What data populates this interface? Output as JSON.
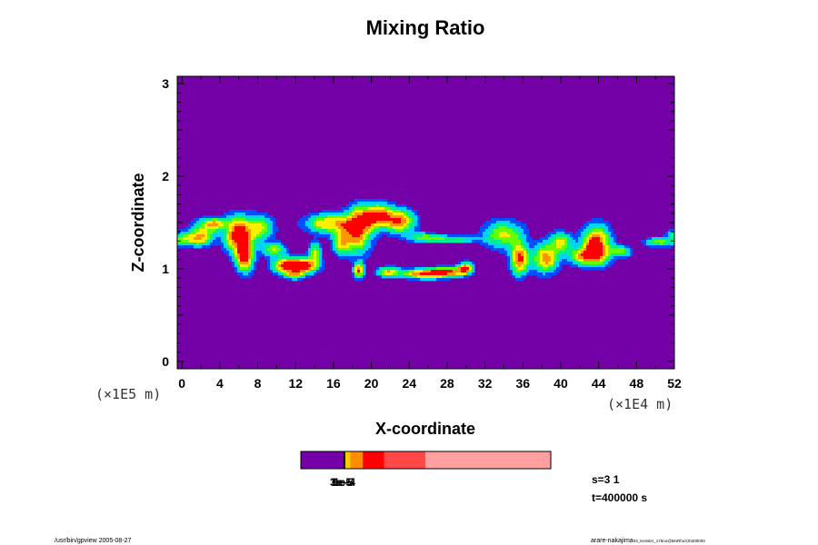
{
  "chart_data": {
    "type": "heatmap",
    "title": "Mixing Ratio",
    "xlabel": "X-coordinate",
    "ylabel": "Z-coordinate",
    "x_scale_label": "(×1E4 m)",
    "y_scale_label": "(×1E5 m)",
    "xlim": [
      -0.5,
      52
    ],
    "ylim": [
      -0.08,
      3.08
    ],
    "x_ticks": [
      0,
      4,
      8,
      12,
      16,
      20,
      24,
      28,
      32,
      36,
      40,
      44,
      48,
      52
    ],
    "y_ticks": [
      0,
      1,
      2,
      3
    ],
    "background_color": "#7400a8",
    "level_colors": [
      "#7400a8",
      "#0050ff",
      "#00d2ff",
      "#00f08c",
      "#64ff00",
      "#ffee00",
      "#ff9600",
      "#ff0000"
    ],
    "colorbar": {
      "colors": [
        "#7400a8",
        "#111111",
        "#ffcc00",
        "#ff8c00",
        "#ff0000",
        "#ff4848",
        "#ffa0a0"
      ],
      "fractions": [
        0.17,
        0.008,
        0.02,
        0.05,
        0.085,
        0.165,
        0.502
      ],
      "tick_labels": [
        "3e-5",
        "6e-5",
        "1e-4"
      ]
    },
    "features": [
      {
        "x": 0.5,
        "z": 1.33,
        "sx": 1.8,
        "sz": 0.07,
        "peak": 0.58
      },
      {
        "x": 2.2,
        "z": 1.4,
        "sx": 1.3,
        "sz": 0.12,
        "peak": 0.55
      },
      {
        "x": 3.5,
        "z": 1.5,
        "sx": 1.3,
        "sz": 0.06,
        "peak": 0.6
      },
      {
        "x": 5.8,
        "z": 1.38,
        "sx": 1.3,
        "sz": 0.18,
        "peak": 0.95
      },
      {
        "x": 6.6,
        "z": 1.15,
        "sx": 0.9,
        "sz": 0.16,
        "peak": 0.95
      },
      {
        "x": 8.0,
        "z": 1.45,
        "sx": 1.5,
        "sz": 0.13,
        "peak": 0.6
      },
      {
        "x": 9.6,
        "z": 1.22,
        "sx": 1.2,
        "sz": 0.07,
        "peak": 0.55
      },
      {
        "x": 11.0,
        "z": 1.05,
        "sx": 1.4,
        "sz": 0.08,
        "peak": 1.0
      },
      {
        "x": 13.0,
        "z": 1.05,
        "sx": 1.3,
        "sz": 0.08,
        "peak": 0.95
      },
      {
        "x": 11.8,
        "z": 0.95,
        "sx": 0.9,
        "sz": 0.05,
        "peak": 0.55
      },
      {
        "x": 14.0,
        "z": 1.2,
        "sx": 0.6,
        "sz": 0.1,
        "peak": 0.55
      },
      {
        "x": 15.6,
        "z": 1.5,
        "sx": 2.4,
        "sz": 0.1,
        "peak": 0.72
      },
      {
        "x": 16.8,
        "z": 1.3,
        "sx": 0.9,
        "sz": 0.12,
        "peak": 0.65
      },
      {
        "x": 18.5,
        "z": 1.42,
        "sx": 1.4,
        "sz": 0.22,
        "peak": 0.85
      },
      {
        "x": 18.6,
        "z": 1.0,
        "sx": 0.5,
        "sz": 0.08,
        "peak": 0.85
      },
      {
        "x": 20.5,
        "z": 1.58,
        "sx": 1.8,
        "sz": 0.12,
        "peak": 0.9
      },
      {
        "x": 23.0,
        "z": 1.52,
        "sx": 1.5,
        "sz": 0.12,
        "peak": 0.75
      },
      {
        "x": 25.5,
        "z": 1.35,
        "sx": 1.6,
        "sz": 0.05,
        "peak": 0.45
      },
      {
        "x": 28.5,
        "z": 1.33,
        "sx": 2.5,
        "sz": 0.04,
        "peak": 0.42
      },
      {
        "x": 21.8,
        "z": 0.98,
        "sx": 1.2,
        "sz": 0.05,
        "peak": 0.7
      },
      {
        "x": 25.5,
        "z": 0.96,
        "sx": 2.0,
        "sz": 0.05,
        "peak": 0.95
      },
      {
        "x": 28.0,
        "z": 0.98,
        "sx": 1.6,
        "sz": 0.05,
        "peak": 0.85
      },
      {
        "x": 29.8,
        "z": 1.02,
        "sx": 0.7,
        "sz": 0.06,
        "peak": 0.9
      },
      {
        "x": 33.8,
        "z": 1.38,
        "sx": 2.0,
        "sz": 0.14,
        "peak": 0.58
      },
      {
        "x": 35.5,
        "z": 1.12,
        "sx": 0.9,
        "sz": 0.16,
        "peak": 0.9
      },
      {
        "x": 38.2,
        "z": 1.12,
        "sx": 1.3,
        "sz": 0.14,
        "peak": 0.78
      },
      {
        "x": 39.8,
        "z": 1.3,
        "sx": 1.2,
        "sz": 0.1,
        "peak": 0.58
      },
      {
        "x": 43.6,
        "z": 1.28,
        "sx": 1.4,
        "sz": 0.18,
        "peak": 1.0
      },
      {
        "x": 42.5,
        "z": 1.15,
        "sx": 1.8,
        "sz": 0.09,
        "peak": 0.7
      },
      {
        "x": 46.2,
        "z": 1.2,
        "sx": 1.0,
        "sz": 0.06,
        "peak": 0.5
      },
      {
        "x": 50.2,
        "z": 1.3,
        "sx": 1.4,
        "sz": 0.05,
        "peak": 0.52
      },
      {
        "x": 52.0,
        "z": 1.38,
        "sx": 0.8,
        "sz": 0.06,
        "peak": 0.5
      }
    ]
  },
  "info": {
    "scale_line": "s=3 1",
    "time_line": "t=400000 s",
    "footer_left": "/usr/bin/gpview 2005-08-27",
    "footer_right": "arare-nakajima",
    "footer_right_small": "03_Kessler_175no@MoRho3;t0400000"
  }
}
